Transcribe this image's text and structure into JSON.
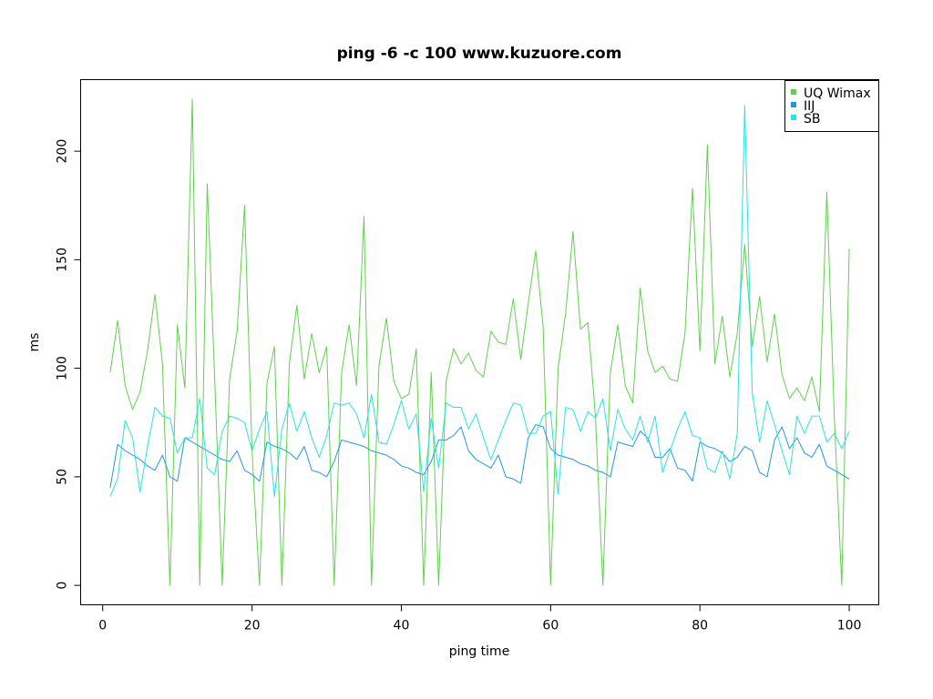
{
  "chart_data": {
    "type": "line",
    "title": "ping -6 -c 100 www.kuzuore.com",
    "xlabel": "ping time",
    "ylabel": "ms",
    "xlim": [
      -2.96,
      103.96
    ],
    "ylim": [
      -8.96,
      232.96
    ],
    "xticks": [
      0,
      20,
      40,
      60,
      80,
      100
    ],
    "yticks": [
      0,
      50,
      100,
      150,
      200
    ],
    "grid": false,
    "legend_position": "top-right",
    "x": [
      1,
      2,
      3,
      4,
      5,
      6,
      7,
      8,
      9,
      10,
      11,
      12,
      13,
      14,
      15,
      16,
      17,
      18,
      19,
      20,
      21,
      22,
      23,
      24,
      25,
      26,
      27,
      28,
      29,
      30,
      31,
      32,
      33,
      34,
      35,
      36,
      37,
      38,
      39,
      40,
      41,
      42,
      43,
      44,
      45,
      46,
      47,
      48,
      49,
      50,
      51,
      52,
      53,
      54,
      55,
      56,
      57,
      58,
      59,
      60,
      61,
      62,
      63,
      64,
      65,
      66,
      67,
      68,
      69,
      70,
      71,
      72,
      73,
      74,
      75,
      76,
      77,
      78,
      79,
      80,
      81,
      82,
      83,
      84,
      85,
      86,
      87,
      88,
      89,
      90,
      91,
      92,
      93,
      94,
      95,
      96,
      97,
      98,
      99,
      100
    ],
    "series": [
      {
        "name": "UQ Wimax",
        "color": "#61d04f",
        "values": [
          98,
          122,
          92,
          81,
          89,
          108,
          134,
          102,
          0,
          120,
          91,
          224,
          0,
          185,
          95,
          0,
          95,
          117,
          175,
          62,
          0,
          93,
          110,
          0,
          102,
          129,
          95,
          116,
          98,
          110,
          0,
          98,
          120,
          92,
          170,
          0,
          101,
          123,
          94,
          86,
          88,
          109,
          0,
          98,
          0,
          94,
          109,
          102,
          107,
          99,
          96,
          117,
          112,
          111,
          132,
          104,
          130,
          154,
          119,
          0,
          100,
          125,
          163,
          118,
          121,
          78,
          0,
          98,
          120,
          92,
          84,
          137,
          108,
          98,
          101,
          95,
          94,
          116,
          183,
          108,
          203,
          102,
          124,
          96,
          116,
          157,
          110,
          133,
          103,
          125,
          97,
          86,
          91,
          85,
          96,
          80,
          181,
          78,
          0,
          155
        ]
      },
      {
        "name": "IIJ",
        "color": "#2297e6",
        "values": [
          45,
          65,
          62,
          60,
          58,
          55,
          53,
          60,
          50,
          48,
          68,
          66,
          64,
          62,
          60,
          58,
          57,
          62,
          53,
          51,
          48,
          66,
          64,
          63,
          61,
          58,
          64,
          53,
          52,
          50,
          57,
          67,
          66,
          65,
          64,
          62,
          61,
          60,
          58,
          55,
          54,
          52,
          51,
          57,
          67,
          67,
          69,
          73,
          62,
          58,
          56,
          54,
          60,
          50,
          49,
          47,
          68,
          74,
          73,
          63,
          60,
          59,
          58,
          56,
          55,
          53,
          52,
          50,
          66,
          65,
          64,
          71,
          68,
          59,
          59,
          63,
          54,
          53,
          48,
          66,
          64,
          63,
          61,
          57,
          59,
          64,
          62,
          52,
          50,
          67,
          73,
          63,
          68,
          61,
          59,
          65,
          55,
          53,
          51,
          49
        ]
      },
      {
        "name": "SB",
        "color": "#28e2e5",
        "values": [
          41,
          49,
          76,
          68,
          43,
          64,
          82,
          78,
          77,
          61,
          68,
          68,
          86,
          54,
          51,
          71,
          78,
          77,
          75,
          62,
          72,
          80,
          41,
          72,
          84,
          71,
          80,
          68,
          59,
          69,
          84,
          83,
          84,
          79,
          68,
          88,
          66,
          65,
          74,
          85,
          72,
          79,
          43,
          77,
          54,
          84,
          82,
          82,
          72,
          79,
          68,
          58,
          67,
          76,
          84,
          83,
          70,
          70,
          78,
          80,
          42,
          82,
          81,
          71,
          80,
          77,
          86,
          62,
          81,
          72,
          67,
          78,
          66,
          78,
          52,
          62,
          72,
          80,
          69,
          68,
          54,
          52,
          62,
          49,
          70,
          221,
          89,
          66,
          85,
          74,
          62,
          51,
          78,
          70,
          78,
          78,
          66,
          70,
          63,
          71
        ]
      }
    ]
  }
}
